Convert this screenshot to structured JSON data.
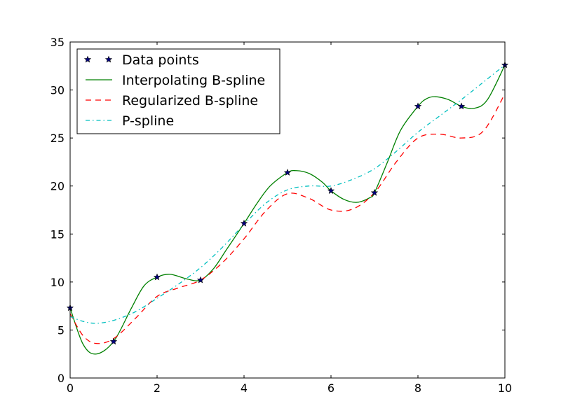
{
  "chart_data": {
    "type": "line",
    "title": "",
    "xlabel": "",
    "ylabel": "",
    "xlim": [
      0,
      10
    ],
    "ylim": [
      0,
      35
    ],
    "xticks": [
      0,
      2,
      4,
      6,
      8,
      10
    ],
    "yticks": [
      0,
      5,
      10,
      15,
      20,
      25,
      30,
      35
    ],
    "grid": false,
    "legend_position": "top-left",
    "series": [
      {
        "name": "Data points",
        "style": "star-markers",
        "color": "#000080",
        "x": [
          0,
          1,
          2,
          3,
          4,
          5,
          6,
          7,
          8,
          9,
          10
        ],
        "y": [
          7.3,
          3.8,
          10.5,
          10.2,
          16.1,
          21.4,
          19.5,
          19.3,
          28.3,
          28.3,
          32.6
        ]
      },
      {
        "name": "Interpolating B-spline",
        "style": "solid",
        "color": "#008000",
        "x": [
          0,
          0.3,
          0.6,
          1,
          1.4,
          1.7,
          2,
          2.3,
          2.7,
          3,
          3.3,
          3.6,
          4,
          4.3,
          4.6,
          5,
          5.2,
          5.5,
          5.8,
          6,
          6.3,
          6.6,
          6.9,
          7,
          7.3,
          7.6,
          8,
          8.2,
          8.4,
          8.7,
          9,
          9.3,
          9.6,
          10
        ],
        "y": [
          7.3,
          3.5,
          2.5,
          3.8,
          7.2,
          9.6,
          10.5,
          10.8,
          10.3,
          10.2,
          11.4,
          13.4,
          16.1,
          18.2,
          20.0,
          21.4,
          21.6,
          21.3,
          20.4,
          19.5,
          18.6,
          18.3,
          18.8,
          19.3,
          22.5,
          25.8,
          28.3,
          29.1,
          29.3,
          29.0,
          28.3,
          28.1,
          29.0,
          32.6
        ]
      },
      {
        "name": "Regularized B-spline",
        "style": "dashed",
        "color": "#ff0000",
        "x": [
          0,
          0.3,
          0.6,
          1,
          1.5,
          2,
          2.5,
          3,
          3.5,
          4,
          4.5,
          5,
          5.5,
          6,
          6.5,
          7,
          7.5,
          8,
          8.5,
          9,
          9.5,
          10
        ],
        "y": [
          6.7,
          4.4,
          3.6,
          4.1,
          6.2,
          8.5,
          9.4,
          10.2,
          12.0,
          14.5,
          17.4,
          19.2,
          18.7,
          17.5,
          17.6,
          19.3,
          22.5,
          25.0,
          25.4,
          25.0,
          25.7,
          29.6
        ]
      },
      {
        "name": "P-spline",
        "style": "dash-dot",
        "color": "#00bfbf",
        "x": [
          0,
          0.3,
          0.6,
          1,
          1.5,
          2,
          2.5,
          3,
          3.5,
          4,
          4.5,
          5,
          5.5,
          6,
          6.5,
          7,
          7.5,
          8,
          8.5,
          9,
          9.5,
          10
        ],
        "y": [
          6.4,
          5.9,
          5.7,
          6.0,
          6.9,
          8.3,
          9.8,
          11.5,
          13.6,
          16.0,
          18.2,
          19.6,
          20.0,
          20.0,
          20.7,
          21.8,
          23.6,
          25.6,
          27.3,
          29.0,
          30.8,
          32.6
        ]
      }
    ]
  }
}
